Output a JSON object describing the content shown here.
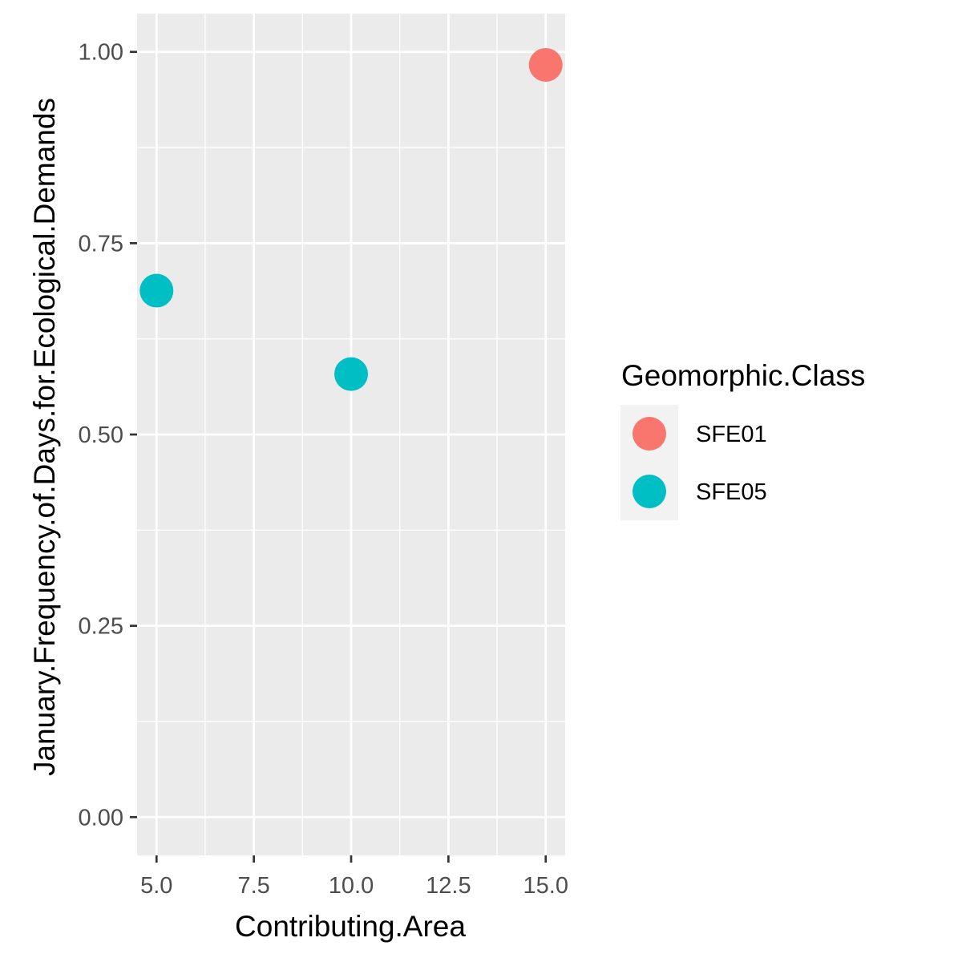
{
  "chart_data": {
    "type": "scatter",
    "title": "",
    "xlabel": "Contributing.Area",
    "ylabel": "January.Frequency.of.Days.for.Ecological.Demands",
    "xlim": [
      4.5,
      15.5
    ],
    "ylim": [
      -0.05,
      1.05
    ],
    "x_ticks": [
      5.0,
      7.5,
      10.0,
      12.5,
      15.0
    ],
    "x_tick_labels": [
      "5.0",
      "7.5",
      "10.0",
      "12.5",
      "15.0"
    ],
    "y_ticks": [
      0.0,
      0.25,
      0.5,
      0.75,
      1.0
    ],
    "y_tick_labels": [
      "0.00",
      "0.25",
      "0.50",
      "0.75",
      "1.00"
    ],
    "grid": true,
    "panel_background": "#ebebeb",
    "legend": {
      "title": "Geomorphic.Class",
      "placement": "right",
      "entries": [
        {
          "label": "SFE01",
          "color": "#F8766D"
        },
        {
          "label": "SFE05",
          "color": "#00BFC4"
        }
      ]
    },
    "series": [
      {
        "name": "SFE01",
        "color": "#F8766D",
        "points": [
          {
            "x": 15.0,
            "y": 0.983
          }
        ]
      },
      {
        "name": "SFE05",
        "color": "#00BFC4",
        "points": [
          {
            "x": 5.0,
            "y": 0.688
          },
          {
            "x": 10.0,
            "y": 0.579
          }
        ]
      }
    ]
  }
}
